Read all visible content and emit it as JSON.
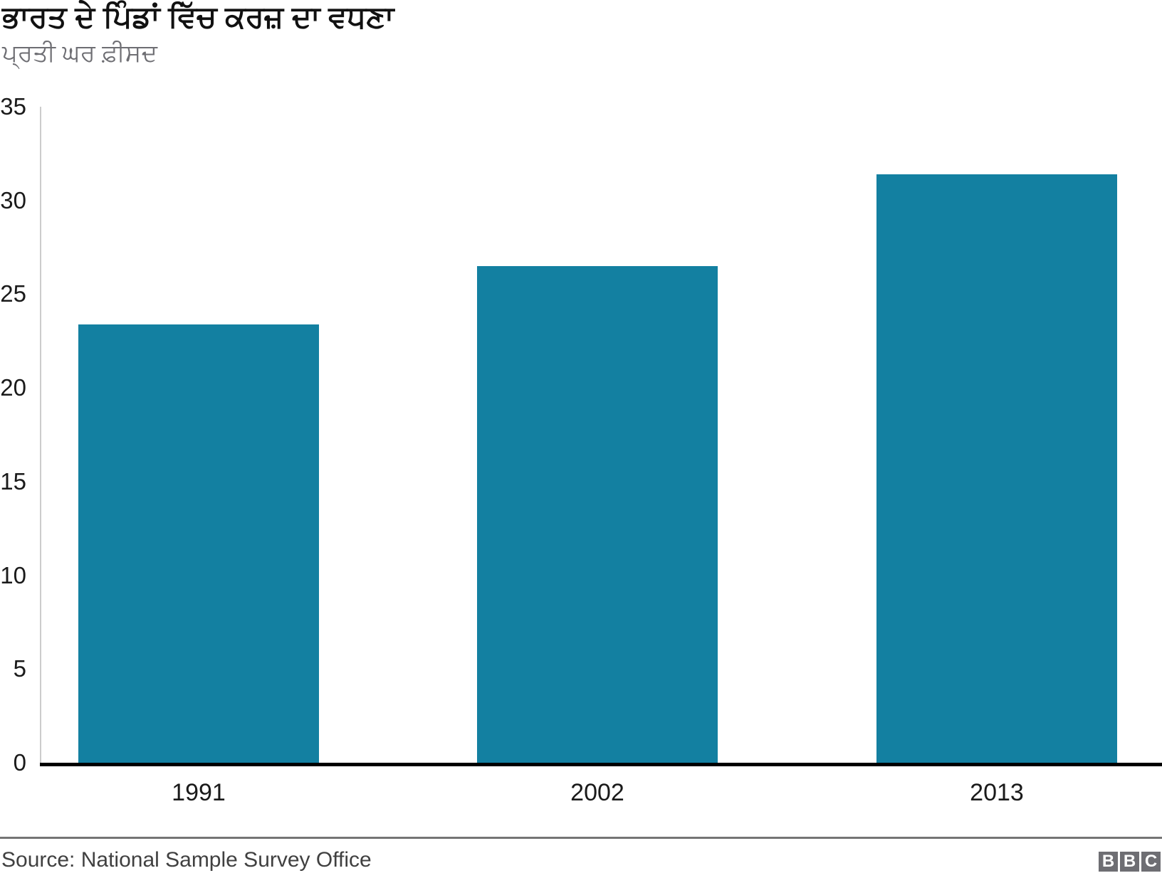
{
  "header": {
    "title": "ਭਾਰਤ ਦੇ ਪਿੰਡਾਂ ਵਿੱਚ ਕਰਜ਼ ਦਾ ਵਧਣਾ",
    "subtitle": "ਪ੍ਰਤੀ ਘਰ ਫ਼ੀਸਦ"
  },
  "chart_data": {
    "type": "bar",
    "title": "ਭਾਰਤ ਦੇ ਪਿੰਡਾਂ ਵਿੱਚ ਕਰਜ਼ ਦਾ ਵਧਣਾ",
    "subtitle": "ਪ੍ਰਤੀ ਘਰ ਫ਼ੀਸਦ",
    "categories": [
      "1991",
      "2002",
      "2013"
    ],
    "values": [
      23.4,
      26.5,
      31.4
    ],
    "xlabel": "",
    "ylabel": "",
    "ylim": [
      0,
      35
    ],
    "y_ticks": [
      0,
      5,
      10,
      15,
      20,
      25,
      30,
      35
    ],
    "grid": false,
    "legend": false,
    "bar_color": "#1380a1",
    "axis_line_color": "#cccccc",
    "baseline_color": "#000000"
  },
  "footer": {
    "source": "Source: National Sample Survey Office",
    "bbc_logo_letters": [
      "B",
      "B",
      "C"
    ],
    "logo_block_color": "#6e6e73",
    "divider_color": "#757575"
  }
}
